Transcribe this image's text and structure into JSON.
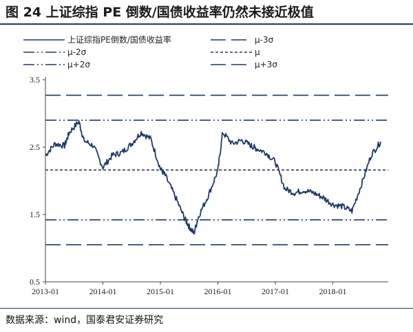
{
  "title": "图 24 上证综指 PE 倒数/国债收益率仍然未接近极值",
  "source": "数据来源：wind，国泰君安证券研究",
  "colors": {
    "line": "#1f3864",
    "text": "#222222"
  },
  "chart_data": {
    "type": "line",
    "title": "",
    "xlabel": "",
    "ylabel": "",
    "ylim": [
      0.5,
      3.5
    ],
    "yticks": [
      "0.5",
      "1.5",
      "2.5",
      "3.5"
    ],
    "xticks": [
      "2013-01",
      "2014-01",
      "2015-01",
      "2016-01",
      "2017-01",
      "2018-01"
    ],
    "grid": false,
    "legend_position": "top",
    "legend": [
      "上证综指PE倒数/国债收益率",
      "μ-3σ",
      "μ-2σ",
      "μ",
      "μ+2σ",
      "μ+3σ"
    ],
    "x": [
      "2013-01",
      "2013-03",
      "2013-05",
      "2013-06",
      "2013-08",
      "2013-09",
      "2013-11",
      "2014-01",
      "2014-03",
      "2014-05",
      "2014-07",
      "2014-09",
      "2014-11",
      "2015-01",
      "2015-02",
      "2015-04",
      "2015-06",
      "2015-07",
      "2015-08",
      "2015-09",
      "2015-11",
      "2016-01",
      "2016-02",
      "2016-04",
      "2016-06",
      "2016-08",
      "2016-09",
      "2016-11",
      "2017-01",
      "2017-03",
      "2017-05",
      "2017-07",
      "2017-09",
      "2017-11",
      "2018-01",
      "2018-03",
      "2018-05",
      "2018-07",
      "2018-09",
      "2018-11"
    ],
    "series": [
      {
        "name": "上证综指PE倒数/国债收益率",
        "values": [
          2.38,
          2.55,
          2.52,
          2.72,
          2.88,
          2.6,
          2.52,
          2.2,
          2.38,
          2.42,
          2.55,
          2.72,
          2.62,
          2.18,
          2.08,
          1.78,
          1.45,
          1.32,
          1.22,
          1.48,
          1.78,
          2.15,
          2.72,
          2.55,
          2.6,
          2.52,
          2.48,
          2.42,
          2.28,
          1.88,
          1.82,
          1.86,
          1.82,
          1.75,
          1.65,
          1.62,
          1.55,
          1.95,
          2.38,
          2.58
        ]
      }
    ],
    "reference_lines": [
      {
        "name": "μ+3σ",
        "value": 3.27
      },
      {
        "name": "μ+2σ",
        "value": 2.9
      },
      {
        "name": "μ",
        "value": 2.16
      },
      {
        "name": "μ-2σ",
        "value": 1.42
      },
      {
        "name": "μ-3σ",
        "value": 1.05
      }
    ]
  }
}
